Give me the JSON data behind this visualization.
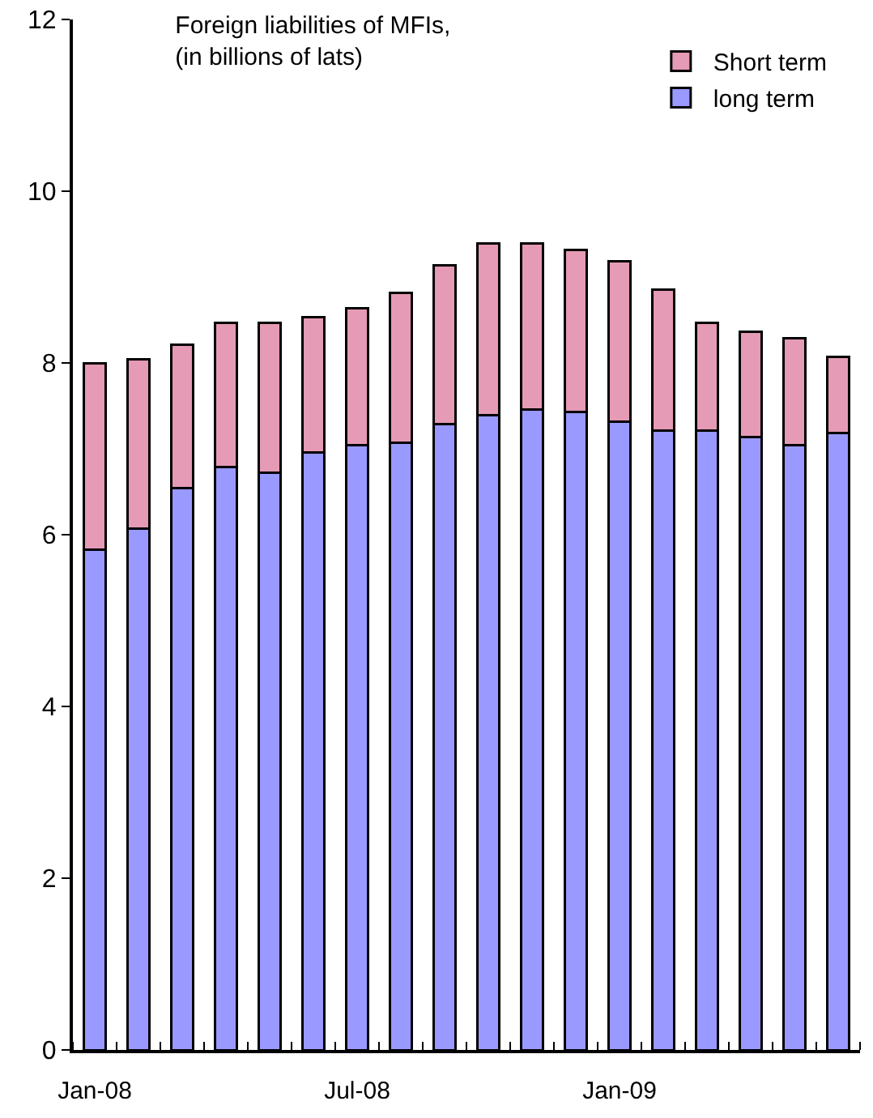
{
  "chart_data": {
    "type": "bar",
    "title": "Foreign liabilities of MFIs,\n(in billions of lats)",
    "stacked": true,
    "categories": [
      "Jan-08",
      null,
      null,
      null,
      null,
      null,
      "Jul-08",
      null,
      null,
      null,
      null,
      null,
      "Jan-09",
      null,
      null,
      null,
      null,
      null
    ],
    "series": [
      {
        "name": "long term",
        "color": "#9999ff",
        "values": [
          5.83,
          6.07,
          6.54,
          6.79,
          6.72,
          6.96,
          7.04,
          7.07,
          7.29,
          7.39,
          7.46,
          7.43,
          7.32,
          7.21,
          7.21,
          7.14,
          7.04,
          7.18
        ]
      },
      {
        "name": "Short term",
        "color": "#e59ab5",
        "values": [
          2.17,
          1.97,
          1.67,
          1.68,
          1.75,
          1.57,
          1.6,
          1.75,
          1.85,
          2.0,
          1.93,
          1.89,
          1.86,
          1.64,
          1.26,
          1.22,
          1.25,
          0.89
        ]
      }
    ],
    "ylim": [
      0,
      12
    ],
    "yticks": [
      0,
      2,
      4,
      6,
      8,
      10,
      12
    ],
    "grid": false,
    "legend": "top right"
  }
}
